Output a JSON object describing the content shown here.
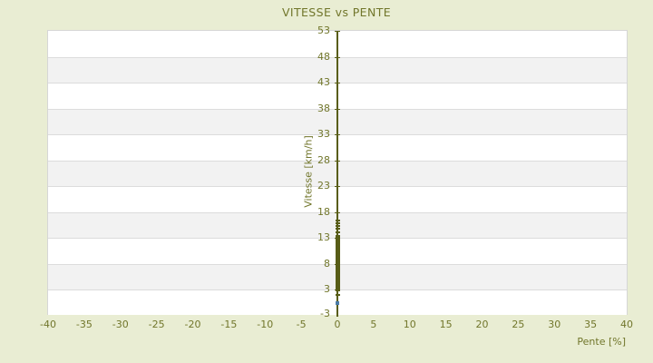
{
  "chart_data": {
    "type": "scatter",
    "title": "VITESSE vs PENTE",
    "xlabel": "Pente [%]",
    "ylabel": "Vitesse [km/h]",
    "xlim": [
      -40,
      40
    ],
    "x_ticks": [
      -40,
      -35,
      -30,
      -25,
      -20,
      -15,
      -10,
      -5,
      0,
      5,
      10,
      15,
      20,
      25,
      30,
      35,
      40
    ],
    "y_ticks": [
      53,
      48,
      43,
      38,
      33,
      28,
      23,
      18,
      13,
      8,
      3
    ],
    "y_axis_min_label": "-3",
    "grid": "horizontal-bands",
    "band_colors": [
      "#ffffff",
      "#f2f2f2"
    ],
    "gridline_color": "#dcdcdc",
    "legend": "none",
    "axis_color": "#585d17",
    "label_color": "#71762b",
    "series": [
      {
        "name": "vitesse-vs-pente-cluster",
        "color": "#585d17",
        "marker": "square",
        "x": 0,
        "dense_y_range": [
          2.6,
          13.6
        ],
        "sparse_y": [
          16.3,
          15.8,
          15.3,
          14.75,
          14.1,
          2.0
        ]
      },
      {
        "name": "outlier-point",
        "color": "#4a7ba8",
        "marker": "square",
        "points": [
          {
            "x": 0,
            "y": 0.4
          }
        ]
      }
    ]
  }
}
